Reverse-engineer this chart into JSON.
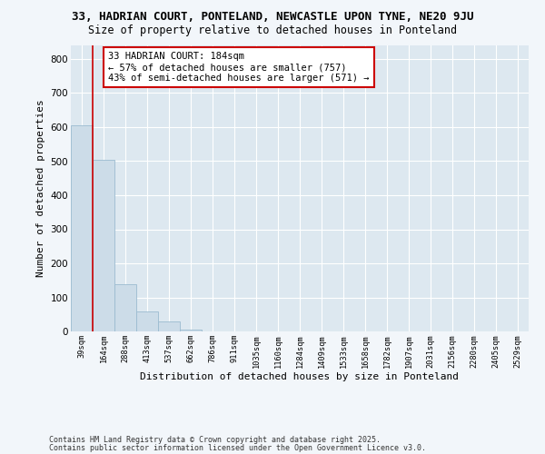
{
  "title1": "33, HADRIAN COURT, PONTELAND, NEWCASTLE UPON TYNE, NE20 9JU",
  "title2": "Size of property relative to detached houses in Ponteland",
  "xlabel": "Distribution of detached houses by size in Ponteland",
  "ylabel": "Number of detached properties",
  "bar_values": [
    605,
    505,
    140,
    60,
    30,
    5,
    0,
    0,
    0,
    0,
    0,
    0,
    0,
    0,
    0,
    0,
    0,
    0,
    0,
    0,
    0
  ],
  "bin_labels": [
    "39sqm",
    "164sqm",
    "288sqm",
    "413sqm",
    "537sqm",
    "662sqm",
    "786sqm",
    "911sqm",
    "1035sqm",
    "1160sqm",
    "1284sqm",
    "1409sqm",
    "1533sqm",
    "1658sqm",
    "1782sqm",
    "1907sqm",
    "2031sqm",
    "2156sqm",
    "2280sqm",
    "2405sqm",
    "2529sqm"
  ],
  "bar_color": "#ccdce8",
  "bar_edge_color": "#9bbbd0",
  "vline_x": 1.0,
  "vline_color": "#cc0000",
  "annotation_text": "33 HADRIAN COURT: 184sqm\n← 57% of detached houses are smaller (757)\n43% of semi-detached houses are larger (571) →",
  "annotation_box_color": "#cc0000",
  "ylim": [
    0,
    840
  ],
  "yticks": [
    0,
    100,
    200,
    300,
    400,
    500,
    600,
    700,
    800
  ],
  "footer1": "Contains HM Land Registry data © Crown copyright and database right 2025.",
  "footer2": "Contains public sector information licensed under the Open Government Licence v3.0.",
  "bg_color": "#f2f6fa",
  "plot_bg_color": "#dde8f0",
  "title1_fontsize": 9,
  "title2_fontsize": 8.5,
  "annot_fontsize": 7.5,
  "footer_fontsize": 6
}
